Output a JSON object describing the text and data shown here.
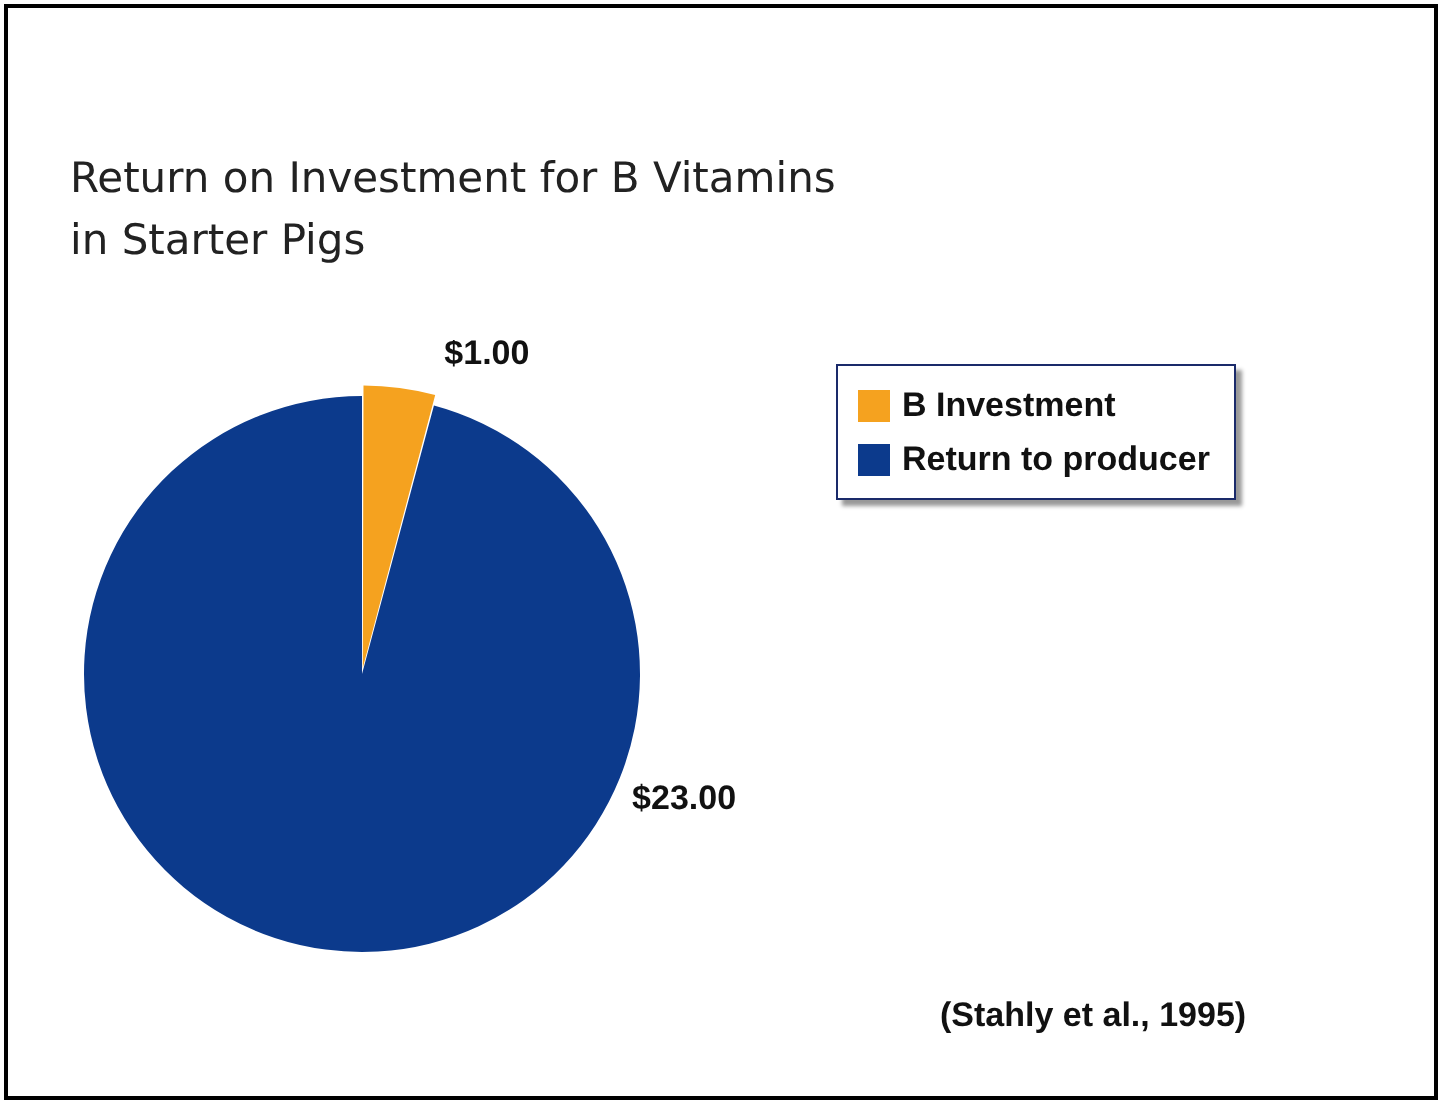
{
  "chart_data": {
    "type": "pie",
    "title": "Return on Investment for B Vitamins\nin Starter Pigs",
    "categories": [
      "B Investment",
      "Return to producer"
    ],
    "values": [
      1,
      23
    ],
    "colors": [
      "#f5a21f",
      "#0c3a8c"
    ],
    "value_labels": [
      "$1.00",
      "$23.00"
    ],
    "legend": "top right",
    "annotations": [
      "(Stahly et al., 1995)"
    ]
  }
}
